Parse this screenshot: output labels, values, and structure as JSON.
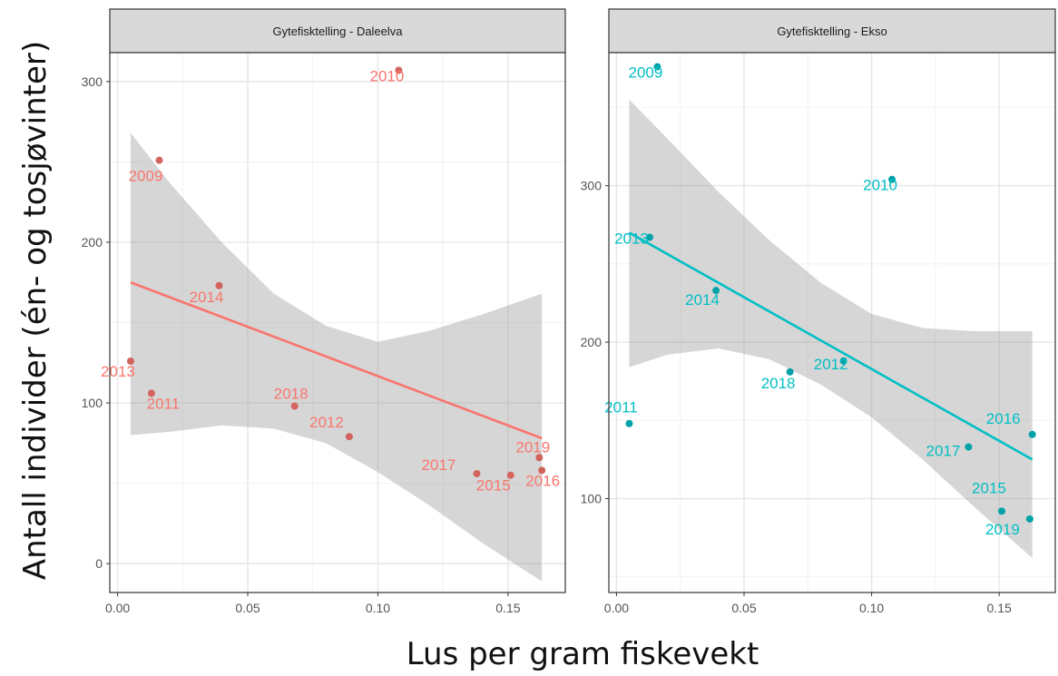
{
  "chart_data": {
    "type": "scatter",
    "ylabel": "Antall individer (én- og tosjøvinter)",
    "xlabel": "Lus per gram fiskevekt",
    "x_ticks": [
      0.0,
      0.05,
      0.1,
      0.15
    ],
    "x_tick_labels": [
      "0.00",
      "0.05",
      "0.10",
      "0.15"
    ],
    "grid": true,
    "smoothing": "linear fit with 95% confidence band",
    "panels": [
      {
        "title": "Gytefisktelling - Daleelva",
        "color": "#F8766D",
        "xlim": [
          -0.003,
          0.172
        ],
        "ylim": [
          -18,
          318
        ],
        "y_ticks": [
          0,
          100,
          200,
          300
        ],
        "points": [
          {
            "label": "2009",
            "x": 0.016,
            "y": 251
          },
          {
            "label": "2010",
            "x": 0.108,
            "y": 307
          },
          {
            "label": "2011",
            "x": 0.013,
            "y": 106
          },
          {
            "label": "2012",
            "x": 0.089,
            "y": 79
          },
          {
            "label": "2013",
            "x": 0.005,
            "y": 126
          },
          {
            "label": "2014",
            "x": 0.039,
            "y": 173
          },
          {
            "label": "2015",
            "x": 0.151,
            "y": 55
          },
          {
            "label": "2016",
            "x": 0.163,
            "y": 58
          },
          {
            "label": "2017",
            "x": 0.138,
            "y": 56
          },
          {
            "label": "2018",
            "x": 0.068,
            "y": 98
          },
          {
            "label": "2019",
            "x": 0.162,
            "y": 66
          }
        ],
        "fit": {
          "x": [
            0.005,
            0.163
          ],
          "y": [
            175,
            78
          ]
        },
        "band": {
          "x": [
            0.005,
            0.02,
            0.04,
            0.06,
            0.08,
            0.1,
            0.12,
            0.14,
            0.163
          ],
          "upper": [
            268,
            237,
            200,
            168,
            148,
            138,
            145,
            155,
            168
          ],
          "lower": [
            80,
            82,
            86,
            84,
            75,
            57,
            36,
            13,
            -11
          ]
        }
      },
      {
        "title": "Gytefisktelling - Ekso",
        "color": "#00BFC4",
        "xlim": [
          -0.003,
          0.172
        ],
        "ylim": [
          40,
          385
        ],
        "y_ticks": [
          100,
          200,
          300
        ],
        "points": [
          {
            "label": "2009",
            "x": 0.016,
            "y": 376
          },
          {
            "label": "2010",
            "x": 0.108,
            "y": 304
          },
          {
            "label": "2011",
            "x": 0.005,
            "y": 148
          },
          {
            "label": "2012",
            "x": 0.089,
            "y": 188
          },
          {
            "label": "2013",
            "x": 0.013,
            "y": 267
          },
          {
            "label": "2014",
            "x": 0.039,
            "y": 233
          },
          {
            "label": "2015",
            "x": 0.151,
            "y": 92
          },
          {
            "label": "2016",
            "x": 0.163,
            "y": 141
          },
          {
            "label": "2017",
            "x": 0.138,
            "y": 133
          },
          {
            "label": "2018",
            "x": 0.068,
            "y": 181
          },
          {
            "label": "2019",
            "x": 0.162,
            "y": 87
          }
        ],
        "fit": {
          "x": [
            0.005,
            0.163
          ],
          "y": [
            270,
            125
          ]
        },
        "band": {
          "x": [
            0.005,
            0.02,
            0.04,
            0.06,
            0.08,
            0.1,
            0.12,
            0.14,
            0.163
          ],
          "upper": [
            355,
            330,
            296,
            265,
            238,
            218,
            209,
            207,
            207
          ],
          "lower": [
            184,
            192,
            196,
            189,
            173,
            152,
            125,
            95,
            62
          ]
        }
      }
    ]
  }
}
